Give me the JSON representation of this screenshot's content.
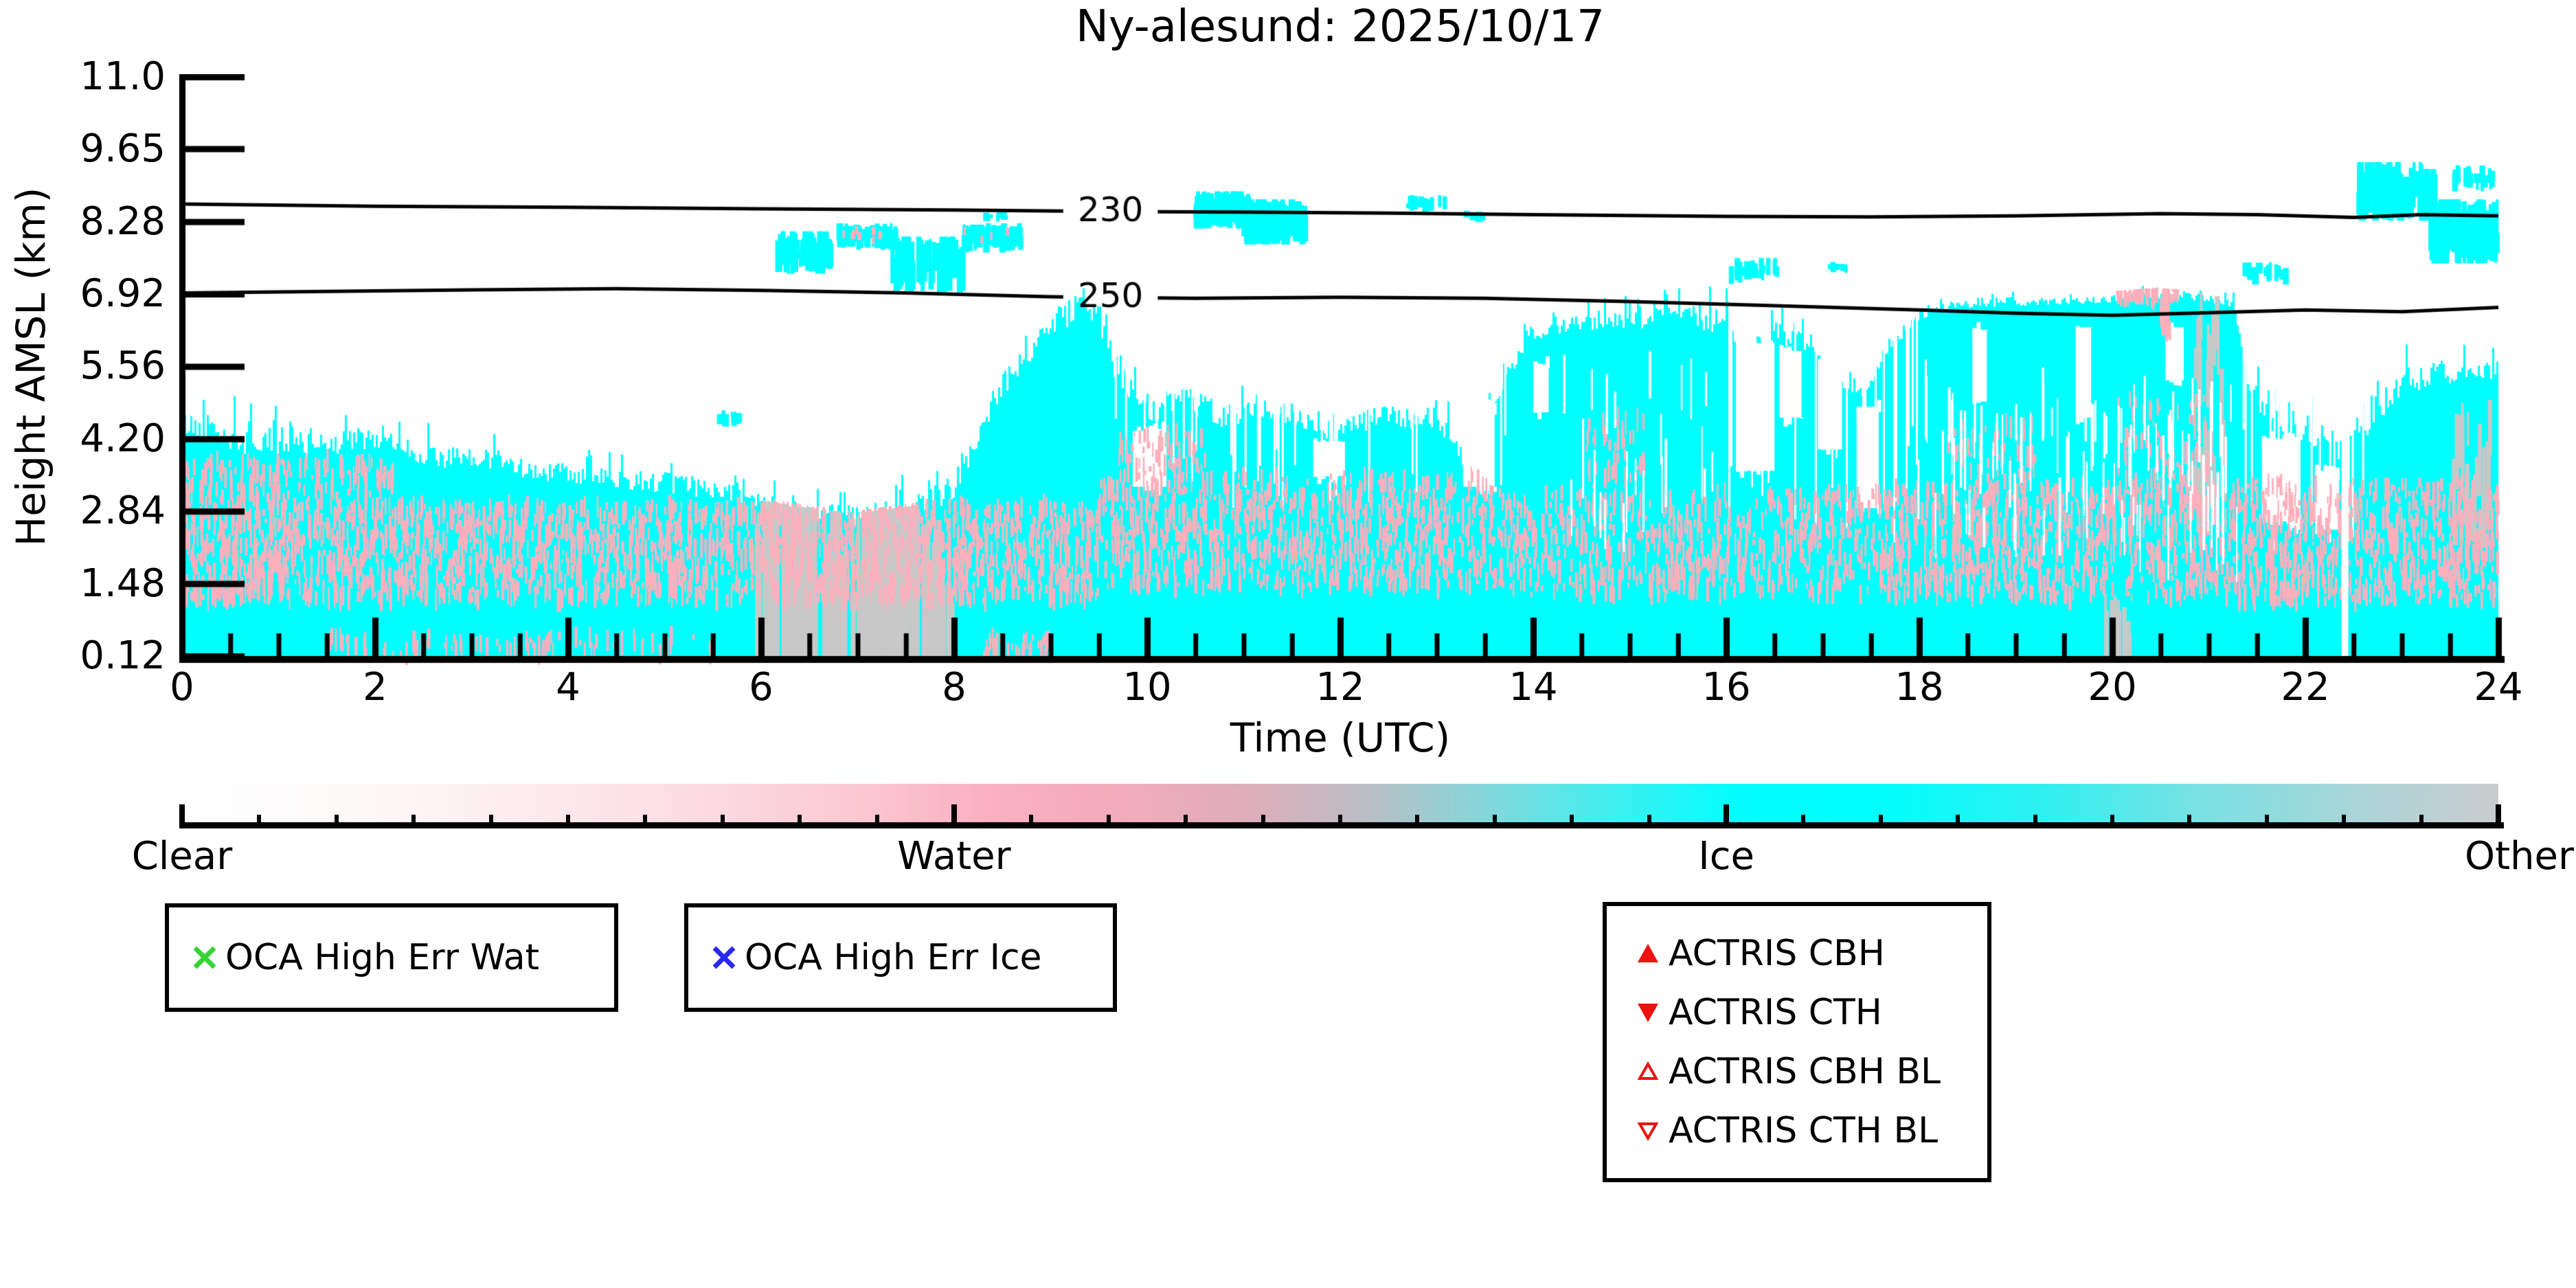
{
  "title": "Ny-alesund: 2025/10/17",
  "axes": {
    "xlabel": "Time (UTC)",
    "ylabel": "Height AMSL (km)",
    "x_tick_labels": [
      "0",
      "2",
      "4",
      "6",
      "8",
      "10",
      "12",
      "14",
      "16",
      "18",
      "20",
      "22",
      "24"
    ],
    "x_minor_step": 0.5,
    "y_tick_labels": [
      "11.0",
      "9.65",
      "8.28",
      "6.92",
      "5.56",
      "4.20",
      "2.84",
      "1.48",
      "0.12"
    ]
  },
  "colorbar": {
    "labels": [
      "Clear",
      "Water",
      "Ice",
      "Other"
    ],
    "tick_positions": [
      0,
      0.3333,
      0.6667,
      1
    ],
    "minor_divisions": 30,
    "gradient": [
      [
        0,
        "#ffffff"
      ],
      [
        0.07,
        "#fefafa"
      ],
      [
        0.14,
        "#fdedf0"
      ],
      [
        0.22,
        "#fcdce3"
      ],
      [
        0.29,
        "#fbc9d3"
      ],
      [
        0.345,
        "#fab1c1"
      ],
      [
        0.4,
        "#f4abbc"
      ],
      [
        0.46,
        "#deadba"
      ],
      [
        0.51,
        "#bbbdc3"
      ],
      [
        0.555,
        "#8dd3d7"
      ],
      [
        0.61,
        "#49eced"
      ],
      [
        0.67,
        "#04feff"
      ],
      [
        0.73,
        "#00ffff"
      ],
      [
        0.8,
        "#2cf1f1"
      ],
      [
        0.87,
        "#79e1e3"
      ],
      [
        0.94,
        "#abd5d8"
      ],
      [
        1,
        "#c9cbcd"
      ]
    ]
  },
  "legend": {
    "oca": [
      {
        "label": "OCA High Err Wat",
        "marker": "x",
        "color": "#35d435"
      },
      {
        "label": "OCA High Err Ice",
        "marker": "x",
        "color": "#2929ee"
      }
    ],
    "actris": [
      {
        "label": "ACTRIS CBH",
        "marker": "triangle-up",
        "filled": true,
        "color": "#ee1111"
      },
      {
        "label": "ACTRIS CTH",
        "marker": "triangle-down",
        "filled": true,
        "color": "#ee1111"
      },
      {
        "label": "ACTRIS CBH BL",
        "marker": "triangle-up",
        "filled": false,
        "color": "#ee1111"
      },
      {
        "label": "ACTRIS CTH BL",
        "marker": "triangle-down",
        "filled": false,
        "color": "#ee1111"
      }
    ]
  },
  "chart_data": {
    "type": "heatmap",
    "title": "Ny-alesund: 2025/10/17",
    "xlabel": "Time (UTC)",
    "ylabel": "Height AMSL (km)",
    "x_range": [
      0,
      24
    ],
    "y_range": [
      0.12,
      11.0
    ],
    "y_ticks": [
      11.0,
      9.65,
      8.28,
      6.92,
      5.56,
      4.2,
      2.84,
      1.48,
      0.12
    ],
    "categories": [
      "Clear",
      "Water",
      "Ice",
      "Other"
    ],
    "phase_colors": {
      "clear": "#ffffff",
      "water": "#ffafbc",
      "ice": "#00ffff",
      "other": "#c8c8c8"
    },
    "contour_color": "#000000",
    "low_cloud_top": [
      [
        0,
        4.45
      ],
      [
        0.3,
        4.3
      ],
      [
        0.7,
        4.05
      ],
      [
        1.2,
        4.0
      ],
      [
        1.8,
        4.15
      ],
      [
        2.3,
        3.95
      ],
      [
        3,
        3.75
      ],
      [
        3.6,
        3.6
      ],
      [
        4.2,
        3.5
      ],
      [
        5,
        3.35
      ],
      [
        5.6,
        3.2
      ],
      [
        6,
        2.95
      ],
      [
        6.5,
        2.8
      ],
      [
        7,
        2.7
      ],
      [
        7.6,
        2.85
      ],
      [
        8,
        3.3
      ],
      [
        8.4,
        4.9
      ],
      [
        8.7,
        5.7
      ],
      [
        9.0,
        6.3
      ],
      [
        9.3,
        6.65
      ],
      [
        9.5,
        6.4
      ],
      [
        9.7,
        5.3
      ],
      [
        10,
        4.7
      ],
      [
        10.4,
        4.9
      ],
      [
        10.8,
        4.5
      ],
      [
        11.2,
        4.7
      ],
      [
        11.6,
        4.5
      ],
      [
        12,
        4.3
      ],
      [
        12.4,
        4.65
      ],
      [
        12.8,
        4.5
      ],
      [
        13.1,
        4.3
      ],
      [
        13.35,
        3.6
      ],
      [
        13.7,
        5.4
      ],
      [
        14,
        6.15
      ],
      [
        14.5,
        6.35
      ],
      [
        15,
        6.4
      ],
      [
        15.6,
        6.45
      ],
      [
        16,
        6.35
      ],
      [
        16.2,
        5.7
      ],
      [
        16.5,
        6.15
      ],
      [
        16.8,
        6.0
      ],
      [
        17.1,
        5.3
      ],
      [
        17.4,
        5.0
      ],
      [
        17.7,
        5.9
      ],
      [
        17.95,
        6.45
      ],
      [
        18.3,
        6.7
      ],
      [
        19,
        6.75
      ],
      [
        19.8,
        6.8
      ],
      [
        20.4,
        6.88
      ],
      [
        20.9,
        6.85
      ],
      [
        21.25,
        6.72
      ],
      [
        21.4,
        5.2
      ],
      [
        21.6,
        4.6
      ],
      [
        22,
        4.25
      ],
      [
        22.35,
        3.9
      ],
      [
        22.65,
        4.45
      ],
      [
        23,
        5.2
      ],
      [
        23.4,
        5.45
      ],
      [
        23.7,
        5.3
      ],
      [
        24,
        5.55
      ]
    ],
    "top_noise_amp": [
      [
        0,
        0.5
      ],
      [
        2,
        0.45
      ],
      [
        5,
        0.4
      ],
      [
        6,
        0.35
      ],
      [
        8,
        0.5
      ],
      [
        9.6,
        0.55
      ],
      [
        13.6,
        0.35
      ],
      [
        14.3,
        0.22
      ],
      [
        16,
        0.5
      ],
      [
        17.9,
        0.14
      ],
      [
        21.3,
        0.14
      ],
      [
        21.45,
        0.5
      ],
      [
        23,
        0.45
      ],
      [
        24,
        0.45
      ]
    ],
    "solid_min_top": 1.32,
    "water_bands": [
      {
        "t0": 0,
        "t1": 9.5,
        "z0": 1.15,
        "z1": 2.95,
        "n": 2100
      },
      {
        "t0": 0,
        "t1": 2.2,
        "z0": 2.95,
        "z1": 3.8,
        "n": 160
      },
      {
        "t0": 1.5,
        "t1": 5.5,
        "z0": 0.14,
        "z1": 0.5,
        "n": 90
      },
      {
        "t0": 8.3,
        "t1": 9.0,
        "z0": 0.14,
        "z1": 0.5,
        "n": 40
      },
      {
        "t0": 9.5,
        "t1": 13.6,
        "z0": 1.4,
        "z1": 3.5,
        "n": 820
      },
      {
        "t0": 9.7,
        "t1": 10.6,
        "z0": 3.2,
        "z1": 4.3,
        "n": 80
      },
      {
        "t0": 13.6,
        "t1": 17.6,
        "z0": 1.25,
        "z1": 3.2,
        "n": 620
      },
      {
        "t0": 14.55,
        "t1": 15.15,
        "z0": 3.2,
        "z1": 4.6,
        "n": 46
      },
      {
        "t0": 17.6,
        "t1": 21.3,
        "z0": 1.2,
        "z1": 3.3,
        "n": 800
      },
      {
        "t0": 18.3,
        "t1": 19.2,
        "z0": 3.3,
        "z1": 4.5,
        "n": 60
      },
      {
        "t0": 20.05,
        "t1": 21.05,
        "z0": 3.0,
        "z1": 5.0,
        "n": 90
      },
      {
        "t0": 20.05,
        "t1": 20.68,
        "z0": 6.82,
        "z1": 7.02,
        "n": 70
      },
      {
        "t0": 20.5,
        "t1": 20.6,
        "z0": 6.2,
        "z1": 6.95,
        "n": 25
      },
      {
        "t0": 21.3,
        "t1": 24,
        "z0": 1.15,
        "z1": 3.4,
        "n": 700
      }
    ],
    "other_bands": [
      {
        "t0": 5.95,
        "t1": 6.55,
        "z0": 0.12,
        "z1": 4.0,
        "n": 60,
        "ground": true
      },
      {
        "t0": 6.55,
        "t1": 7.0,
        "z0": 0.12,
        "z1": 3.1,
        "n": 30,
        "ground": true
      },
      {
        "t0": 7.0,
        "t1": 7.65,
        "z0": 0.12,
        "z1": 4.2,
        "n": 70,
        "ground": true
      },
      {
        "t0": 7.65,
        "t1": 7.98,
        "z0": 0.12,
        "z1": 2.9,
        "n": 22,
        "ground": true
      },
      {
        "t0": 19.92,
        "t1": 20.18,
        "z0": 0.12,
        "z1": 1.35,
        "n": 26,
        "ground": true
      },
      {
        "t0": 20.85,
        "t1": 21.18,
        "z0": 2.8,
        "z1": 6.6,
        "n": 34,
        "ground": false
      },
      {
        "t0": 23.45,
        "t1": 23.92,
        "z0": 2.3,
        "z1": 4.6,
        "n": 22,
        "ground": false
      }
    ],
    "upper_patches": [
      {
        "t0": 5.55,
        "t1": 5.78,
        "z0": 4.45,
        "z1": 4.72,
        "n": 10,
        "w": 0
      },
      {
        "t0": 6.15,
        "t1": 6.75,
        "z0": 7.35,
        "z1": 8.05,
        "n": 40,
        "w": 0
      },
      {
        "t0": 6.8,
        "t1": 7.4,
        "z0": 7.8,
        "z1": 8.2,
        "n": 60,
        "w": 8
      },
      {
        "t0": 7.35,
        "t1": 8.1,
        "z0": 7.0,
        "z1": 7.95,
        "n": 60,
        "w": 0
      },
      {
        "t0": 8.1,
        "t1": 8.7,
        "z0": 7.75,
        "z1": 8.2,
        "n": 60,
        "w": 5
      },
      {
        "t0": 8.33,
        "t1": 8.55,
        "z0": 8.3,
        "z1": 8.5,
        "n": 10,
        "w": 0
      },
      {
        "t0": 10.5,
        "t1": 11.05,
        "z0": 8.2,
        "z1": 8.8,
        "n": 110,
        "w": 0
      },
      {
        "t0": 11.0,
        "t1": 11.65,
        "z0": 7.9,
        "z1": 8.65,
        "n": 130,
        "w": 0
      },
      {
        "t0": 12.7,
        "t1": 13.1,
        "z0": 8.5,
        "z1": 8.75,
        "n": 20,
        "w": 0
      },
      {
        "t0": 13.3,
        "t1": 13.5,
        "z0": 8.3,
        "z1": 8.5,
        "n": 8,
        "w": 0
      },
      {
        "t0": 16.05,
        "t1": 16.6,
        "z0": 7.15,
        "z1": 7.55,
        "n": 20,
        "w": 0
      },
      {
        "t0": 17.05,
        "t1": 17.25,
        "z0": 7.3,
        "z1": 7.5,
        "n": 8,
        "w": 0
      },
      {
        "t0": 21.35,
        "t1": 21.8,
        "z0": 7.15,
        "z1": 7.5,
        "n": 14,
        "w": 0
      },
      {
        "t0": 22.55,
        "t1": 23.35,
        "z0": 8.35,
        "z1": 9.35,
        "n": 90,
        "w": 0
      },
      {
        "t0": 23.3,
        "t1": 24.0,
        "z0": 7.55,
        "z1": 8.65,
        "n": 110,
        "w": 0
      },
      {
        "t0": 23.55,
        "t1": 23.95,
        "z0": 8.9,
        "z1": 9.3,
        "n": 24,
        "w": 0
      }
    ],
    "holes": [
      {
        "t0": 9.85,
        "t1": 10.2,
        "z0": 3.3,
        "z1": 4.35
      },
      {
        "t0": 11.72,
        "t1": 12.05,
        "z0": 3.5,
        "z1": 4.15
      },
      {
        "t0": 13.28,
        "t1": 13.6,
        "z0": 3.3,
        "z1": 4.8
      },
      {
        "t0": 14.0,
        "t1": 14.16,
        "z0": 4.7,
        "z1": 5.6
      },
      {
        "t0": 16.1,
        "t1": 16.5,
        "z0": 3.6,
        "z1": 6.0
      },
      {
        "t0": 16.55,
        "t1": 16.78,
        "z0": 4.6,
        "z1": 5.85
      },
      {
        "t0": 16.95,
        "t1": 17.2,
        "z0": 4.0,
        "z1": 5.7
      },
      {
        "t0": 17.35,
        "t1": 17.58,
        "z0": 2.9,
        "z1": 4.8
      },
      {
        "t0": 18.55,
        "t1": 18.7,
        "z0": 4.9,
        "z1": 6.25
      },
      {
        "t0": 19.62,
        "t1": 19.78,
        "z0": 4.6,
        "z1": 6.3
      },
      {
        "t0": 20.55,
        "t1": 20.74,
        "z0": 5.3,
        "z1": 6.3
      },
      {
        "t0": 21.55,
        "t1": 21.95,
        "z0": 2.7,
        "z1": 4.2
      },
      {
        "t0": 22.1,
        "t1": 22.35,
        "z0": 2.5,
        "z1": 3.6
      }
    ],
    "broken_ranges": [
      {
        "t0": 9.6,
        "t1": 13.7,
        "p": 0.15,
        "dmax": 0.55
      },
      {
        "t0": 16.0,
        "t1": 18.0,
        "p": 0.32,
        "dmax": 0.85
      },
      {
        "t0": 21.35,
        "t1": 22.65,
        "p": 0.34,
        "dmax": 0.8
      }
    ],
    "white_threads": [
      {
        "t0": 17.95,
        "t1": 21.3,
        "z0": 2.2,
        "z1": 5.0,
        "n": 90
      },
      {
        "t0": 14.3,
        "t1": 16.0,
        "z0": 2.5,
        "z1": 5.5,
        "n": 25
      }
    ],
    "gap_columns": [
      {
        "t": 22.41,
        "w": 0.07
      }
    ],
    "contours": [
      {
        "label": "230",
        "label_t": 9.62,
        "points": [
          [
            0,
            8.61
          ],
          [
            2,
            8.57
          ],
          [
            4,
            8.55
          ],
          [
            6,
            8.52
          ],
          [
            8,
            8.5
          ],
          [
            9.6,
            8.47
          ],
          [
            11,
            8.46
          ],
          [
            12.5,
            8.44
          ],
          [
            14,
            8.41
          ],
          [
            16,
            8.38
          ],
          [
            17.5,
            8.37
          ],
          [
            19,
            8.39
          ],
          [
            20.5,
            8.43
          ],
          [
            21.5,
            8.41
          ],
          [
            22.5,
            8.36
          ],
          [
            23.2,
            8.41
          ],
          [
            24,
            8.39
          ]
        ]
      },
      {
        "label": "250",
        "label_t": 9.62,
        "points": [
          [
            0,
            6.94
          ],
          [
            1.5,
            6.97
          ],
          [
            3,
            7.0
          ],
          [
            4.5,
            7.02
          ],
          [
            6,
            6.99
          ],
          [
            7.5,
            6.94
          ],
          [
            9,
            6.87
          ],
          [
            10.5,
            6.84
          ],
          [
            12,
            6.86
          ],
          [
            13.5,
            6.84
          ],
          [
            15,
            6.78
          ],
          [
            16.5,
            6.7
          ],
          [
            18,
            6.62
          ],
          [
            19,
            6.56
          ],
          [
            20,
            6.52
          ],
          [
            21,
            6.57
          ],
          [
            22,
            6.62
          ],
          [
            23,
            6.59
          ],
          [
            24,
            6.67
          ]
        ]
      }
    ]
  }
}
